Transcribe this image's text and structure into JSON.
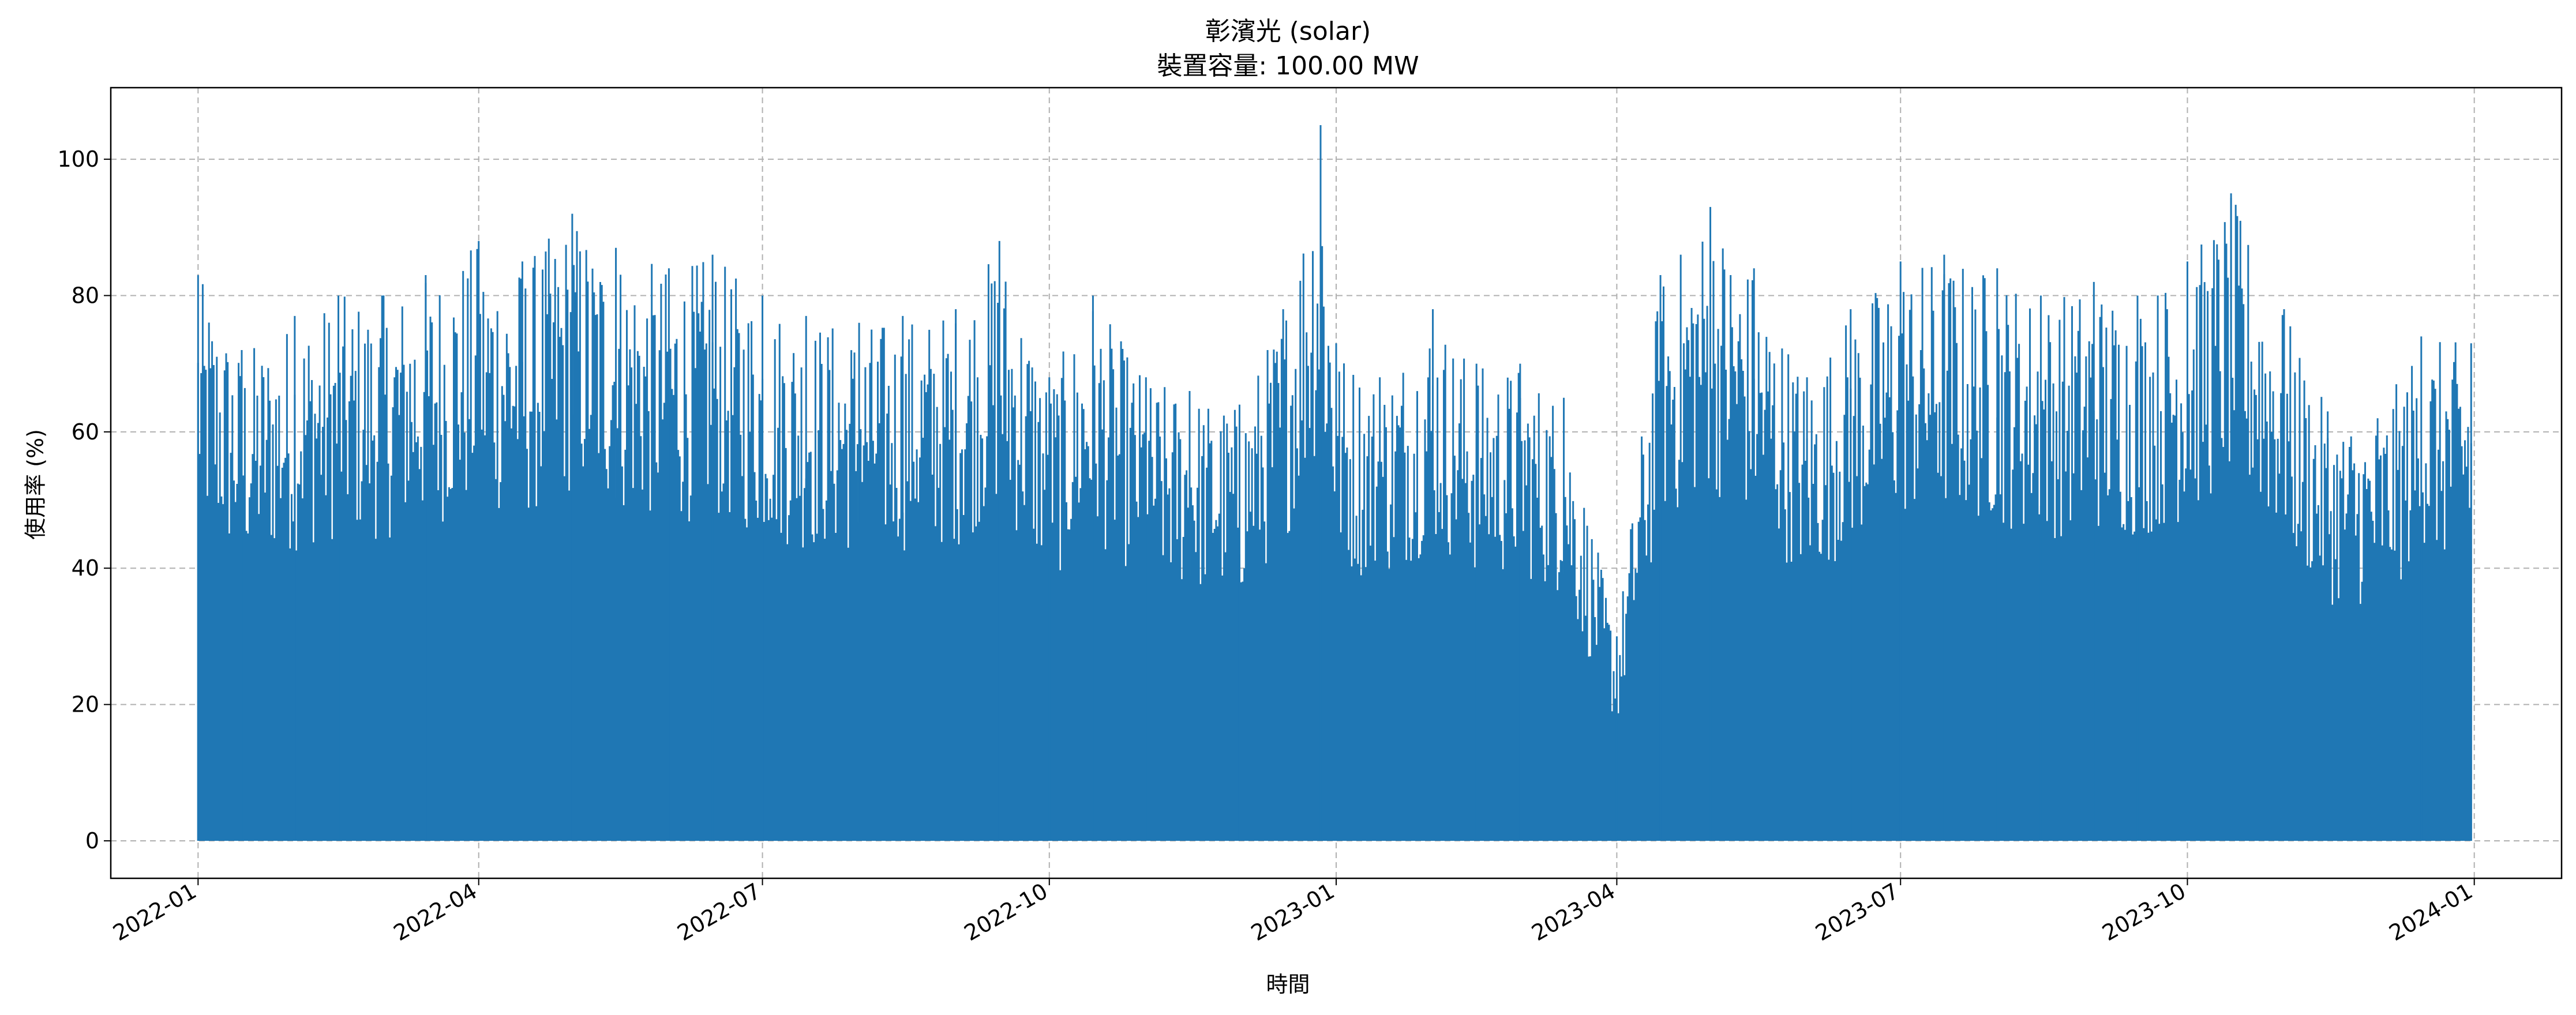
{
  "chart_data": {
    "type": "area",
    "title": "彰濱光 (solar)",
    "subtitle": "裝置容量: 100.00 MW",
    "xlabel": "時間",
    "ylabel": "使用率 (%)",
    "xlim": [
      "2021-12-04",
      "2024-01-29"
    ],
    "ylim": [
      -5.5,
      110.5
    ],
    "x_tick_labels": [
      "2022-01",
      "2022-04",
      "2022-07",
      "2022-10",
      "2023-01",
      "2023-04",
      "2023-07",
      "2023-10",
      "2024-01"
    ],
    "y_tick_labels": [
      "0",
      "20",
      "40",
      "60",
      "80",
      "100"
    ],
    "grid": true,
    "series": [
      {
        "color": "#1f77b4",
        "x": [
          "2022-01-01",
          "2022-01-15",
          "2022-02-01",
          "2022-02-15",
          "2022-03-01",
          "2022-03-15",
          "2022-04-01",
          "2022-04-15",
          "2022-05-01",
          "2022-05-15",
          "2022-06-01",
          "2022-06-15",
          "2022-07-01",
          "2022-07-15",
          "2022-08-01",
          "2022-08-15",
          "2022-09-01",
          "2022-09-15",
          "2022-10-01",
          "2022-10-15",
          "2022-11-01",
          "2022-11-15",
          "2022-12-01",
          "2022-12-15",
          "2022-12-27",
          "2023-01-01",
          "2023-01-15",
          "2023-02-01",
          "2023-02-15",
          "2023-03-01",
          "2023-03-15",
          "2023-04-01",
          "2023-04-15",
          "2023-05-01",
          "2023-05-15",
          "2023-06-01",
          "2023-06-15",
          "2023-07-01",
          "2023-07-15",
          "2023-08-01",
          "2023-08-15",
          "2023-09-01",
          "2023-09-15",
          "2023-10-01",
          "2023-10-15",
          "2023-11-01",
          "2023-11-15",
          "2023-12-01",
          "2023-12-15",
          "2023-12-31"
        ],
        "values": [
          83,
          72,
          77,
          80,
          80,
          83,
          88,
          85,
          92,
          87,
          84,
          86,
          80,
          77,
          76,
          77,
          78,
          88,
          68,
          80,
          68,
          66,
          64,
          78,
          105,
          73,
          68,
          78,
          70,
          70,
          65,
          30,
          83,
          93,
          84,
          68,
          78,
          85,
          86,
          84,
          80,
          82,
          80,
          85,
          95,
          78,
          63,
          62,
          74,
          73
        ]
      }
    ]
  }
}
